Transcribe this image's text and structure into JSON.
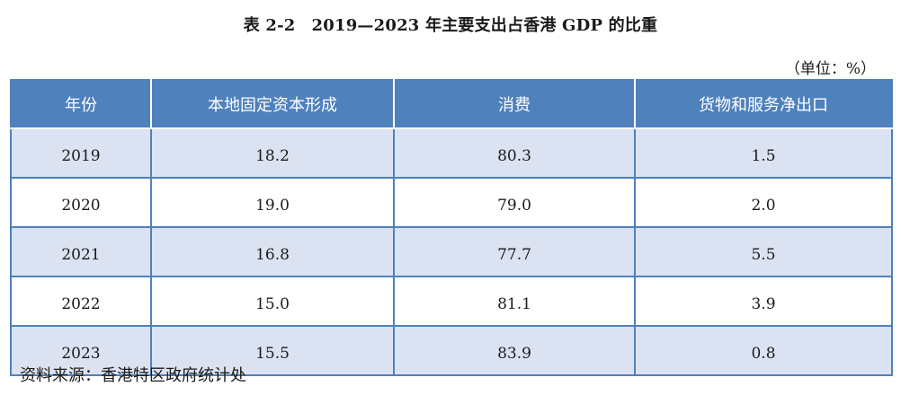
{
  "title": {
    "label": "表 2-2",
    "text": "2019—2023 年主要支出占香港 GDP 的比重"
  },
  "unit": "（单位：%）",
  "table": {
    "headers": [
      "年份",
      "本地固定资本形成",
      "消费",
      "货物和服务净出口"
    ],
    "rows": [
      [
        "2019",
        "18.2",
        "80.3",
        "1.5"
      ],
      [
        "2020",
        "19.0",
        "79.0",
        "2.0"
      ],
      [
        "2021",
        "16.8",
        "77.7",
        "5.5"
      ],
      [
        "2022",
        "15.0",
        "81.1",
        "3.9"
      ],
      [
        "2023",
        "15.5",
        "83.9",
        "0.8"
      ]
    ]
  },
  "source": "资料来源：香港特区政府统计处",
  "colors": {
    "header_bg": "#4f81bd",
    "stripe_bg": "#dbe2f1"
  }
}
